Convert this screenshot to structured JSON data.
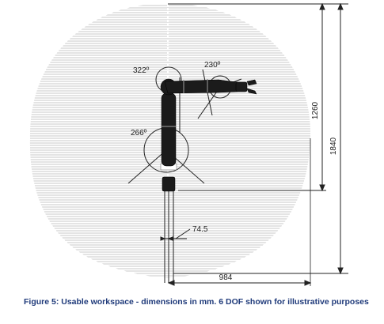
{
  "dimensions": {
    "joint_angle_top_left": "322º",
    "joint_angle_top_right": "230º",
    "joint_angle_middle": "266º",
    "offset": "74.5",
    "height_inner": "1260",
    "height_outer": "1840",
    "reach": "984"
  },
  "caption": "Figure 5: Usable workspace - dimensions in mm. 6 DOF shown for illustrative purposes",
  "colors": {
    "workspace_hatch": "#c9c9c9",
    "robot_arm": "#1b1b1b",
    "caption": "#1f3a7a"
  }
}
